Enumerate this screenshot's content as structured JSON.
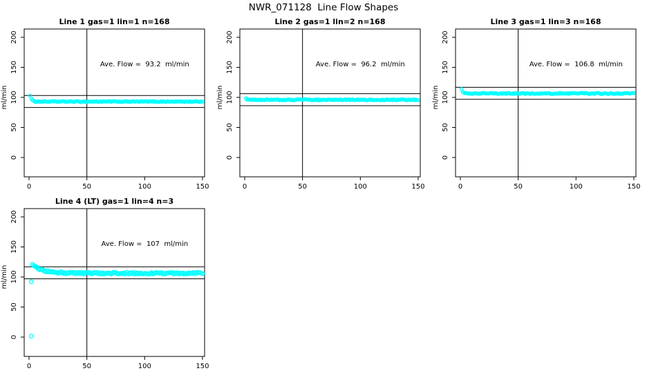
{
  "figure": {
    "title": "NWR_071128  Line Flow Shapes",
    "background_color": "#FFFFFF",
    "text_color": "#000000",
    "marker_color": "#00FFFF",
    "axis_color": "#000000"
  },
  "chart_data": [
    {
      "type": "scatter",
      "title": "Line 1 gas=1 lin=1 n=168",
      "gas": 1,
      "lin": 1,
      "n": 168,
      "annotation": "Ave. Flow =  93.2  ml/min",
      "ave_flow_ml_min": 93.2,
      "ylabel": "ml/min",
      "xticks": [
        0,
        50,
        100,
        150
      ],
      "yticks": [
        0,
        50,
        100,
        150,
        200
      ],
      "xlim": [
        -4,
        152
      ],
      "ylim": [
        -32,
        214
      ],
      "vline_x": 50,
      "hlines": [
        103.2,
        83.2
      ],
      "grid": false,
      "marker_color": "#00FFFF",
      "series": {
        "x_start": 1,
        "x_end": 150,
        "baseline": 93.0,
        "start_amp": 10.5,
        "decay_tau": 1.2,
        "noise": 0.8
      },
      "outliers": []
    },
    {
      "type": "scatter",
      "title": "Line 2 gas=1 lin=2 n=168",
      "gas": 1,
      "lin": 2,
      "n": 168,
      "annotation": "Ave. Flow =  96.2  ml/min",
      "ave_flow_ml_min": 96.2,
      "ylabel": "ml/min",
      "xticks": [
        0,
        50,
        100,
        150
      ],
      "yticks": [
        0,
        50,
        100,
        150,
        200
      ],
      "xlim": [
        -4,
        152
      ],
      "ylim": [
        -32,
        214
      ],
      "vline_x": 50,
      "hlines": [
        106.2,
        86.2
      ],
      "grid": false,
      "marker_color": "#00FFFF",
      "series": {
        "x_start": 1,
        "x_end": 150,
        "baseline": 96.0,
        "start_amp": 2.5,
        "decay_tau": 1.0,
        "noise": 0.9
      },
      "outliers": []
    },
    {
      "type": "scatter",
      "title": "Line 3 gas=1 lin=3 n=168",
      "gas": 1,
      "lin": 3,
      "n": 168,
      "annotation": "Ave. Flow =  106.8  ml/min",
      "ave_flow_ml_min": 106.8,
      "ylabel": "ml/min",
      "xticks": [
        0,
        50,
        100,
        150
      ],
      "yticks": [
        0,
        50,
        100,
        150,
        200
      ],
      "xlim": [
        -4,
        152
      ],
      "ylim": [
        -32,
        214
      ],
      "vline_x": 50,
      "hlines": [
        116.8,
        96.8
      ],
      "grid": false,
      "marker_color": "#00FFFF",
      "series": {
        "x_start": 1,
        "x_end": 150,
        "baseline": 106.5,
        "start_amp": 7.0,
        "decay_tau": 1.5,
        "noise": 0.9
      },
      "outliers": []
    },
    {
      "type": "scatter",
      "title": "Line 4 (LT) gas=1 lin=4 n=3",
      "gas": 1,
      "lin": 4,
      "n": 3,
      "annotation": "Ave. Flow =  107  ml/min",
      "ave_flow_ml_min": 107,
      "ylabel": "ml/min",
      "xticks": [
        0,
        50,
        100,
        150
      ],
      "yticks": [
        0,
        50,
        100,
        150,
        200
      ],
      "xlim": [
        -4,
        152
      ],
      "ylim": [
        -32,
        214
      ],
      "vline_x": 50,
      "hlines": [
        117,
        97
      ],
      "grid": false,
      "marker_color": "#00FFFF",
      "series": {
        "x_start": 3,
        "x_end": 150,
        "baseline": 106.3,
        "start_amp": 13.5,
        "decay_tau": 9.0,
        "noise": 1.4
      },
      "outliers": [
        {
          "x": 2,
          "y": 92
        },
        {
          "x": 2,
          "y": 1.5
        }
      ]
    }
  ]
}
